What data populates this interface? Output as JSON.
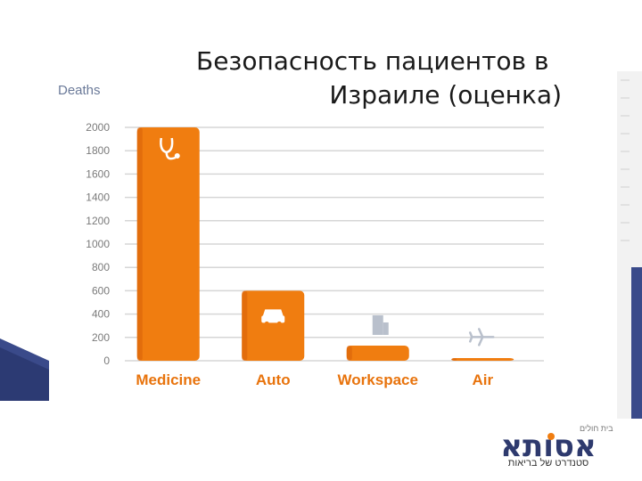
{
  "slide": {
    "title_line1": "Безопасность пациентов в",
    "title_line2": "Израиле (оценка)",
    "brand": {
      "logo_text": "אסותא",
      "tagline": "סטנדרט של בריאות",
      "small_text": "בית חולים"
    }
  },
  "colors": {
    "bar": "#f07d10",
    "bar_dark": "#d9620a",
    "category_label": "#e8730c",
    "axis_text": "#7a7a7a",
    "grid": "#d6d6d6",
    "accent_blue": "#3a4a8a"
  },
  "chart_data": {
    "type": "bar",
    "ylabel": "Deaths",
    "categories": [
      "Medicine",
      "Auto",
      "Workspace",
      "Air"
    ],
    "values": [
      2000,
      600,
      130,
      20
    ],
    "icons": [
      "stethoscope-icon",
      "car-icon",
      "building-icon",
      "airplane-icon"
    ],
    "yticks": [
      "2000",
      "1800",
      "1600",
      "1400",
      "1200",
      "1000",
      "800",
      "600",
      "400",
      "200",
      "0"
    ],
    "ylim": [
      0,
      2000
    ],
    "grid": true
  }
}
